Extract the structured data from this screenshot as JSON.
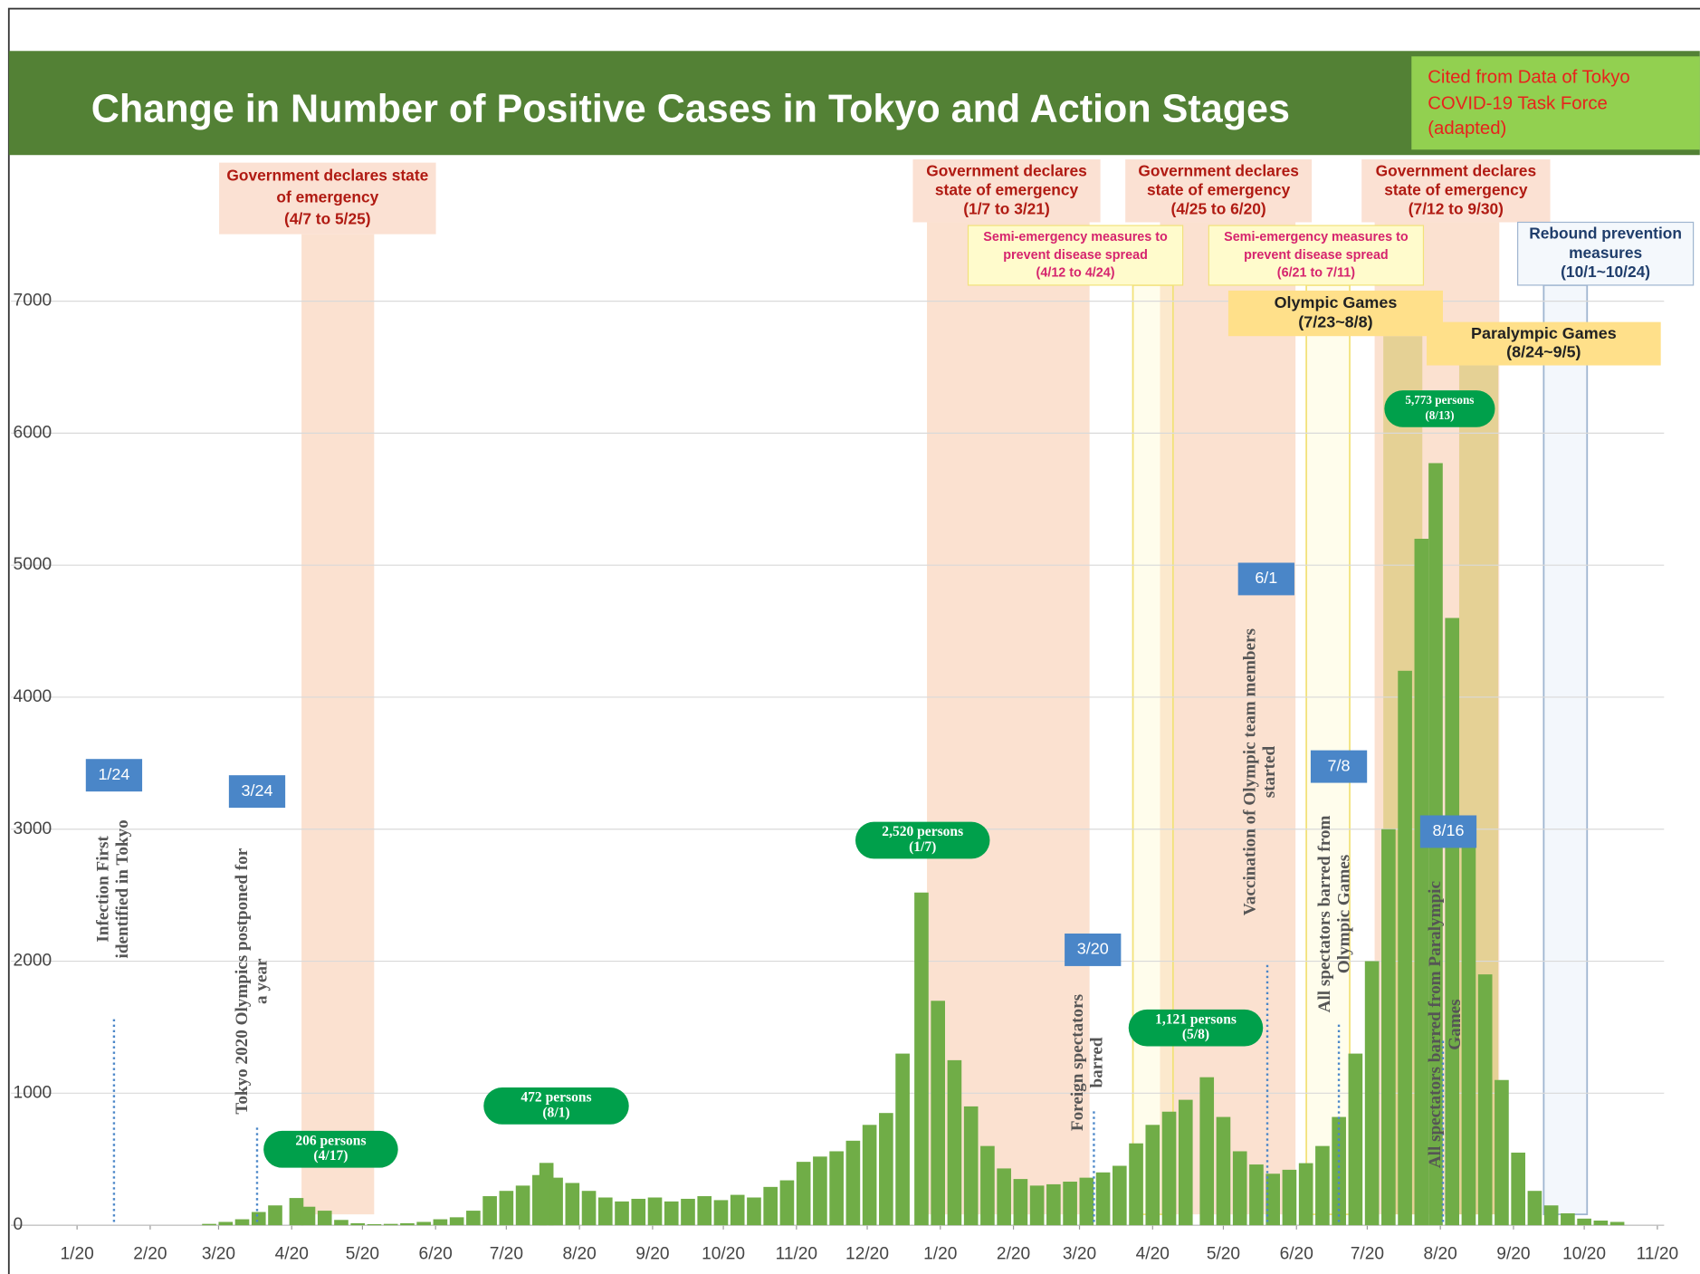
{
  "title": "Change in Number of Positive Cases in Tokyo and Action Stages",
  "source": [
    "Cited from Data of Tokyo",
    "COVID-19 Task Force",
    "(adapted)"
  ],
  "chart_data": {
    "type": "bar",
    "color": "#70ad47",
    "grid": true,
    "xlim": [
      -14,
      702
    ],
    "ylim": [
      0,
      8000
    ],
    "yticks": [
      0,
      1000,
      2000,
      3000,
      4000,
      5000,
      6000,
      7000
    ],
    "xticks": [
      {
        "value": 14,
        "label": "1/20"
      },
      {
        "value": 45,
        "label": "2/20"
      },
      {
        "value": 74,
        "label": "3/20"
      },
      {
        "value": 105,
        "label": "4/20"
      },
      {
        "value": 135,
        "label": "5/20"
      },
      {
        "value": 166,
        "label": "6/20"
      },
      {
        "value": 196,
        "label": "7/20"
      },
      {
        "value": 227,
        "label": "8/20"
      },
      {
        "value": 258,
        "label": "9/20"
      },
      {
        "value": 288,
        "label": "10/20"
      },
      {
        "value": 319,
        "label": "11/20"
      },
      {
        "value": 349,
        "label": "12/20"
      },
      {
        "value": 380,
        "label": "1/20"
      },
      {
        "value": 411,
        "label": "2/20"
      },
      {
        "value": 439,
        "label": "3/20"
      },
      {
        "value": 470,
        "label": "4/20"
      },
      {
        "value": 500,
        "label": "5/20"
      },
      {
        "value": 531,
        "label": "6/20"
      },
      {
        "value": 561,
        "label": "7/20"
      },
      {
        "value": 592,
        "label": "8/20"
      },
      {
        "value": 623,
        "label": "9/20"
      },
      {
        "value": 653,
        "label": "10/20"
      },
      {
        "value": 684,
        "label": "11/20"
      }
    ],
    "x": [
      70,
      77,
      84,
      91,
      98,
      107,
      112,
      119,
      126,
      133,
      140,
      147,
      154,
      161,
      168,
      175,
      182,
      189,
      196,
      203,
      210,
      213,
      217,
      224,
      231,
      238,
      245,
      252,
      259,
      266,
      273,
      280,
      287,
      294,
      301,
      308,
      315,
      322,
      329,
      336,
      343,
      350,
      357,
      364,
      372,
      379,
      386,
      393,
      400,
      407,
      414,
      421,
      428,
      435,
      442,
      449,
      456,
      463,
      470,
      477,
      484,
      493,
      500,
      507,
      514,
      521,
      528,
      535,
      542,
      549,
      556,
      563,
      570,
      577,
      584,
      590,
      597,
      604,
      611,
      618,
      625,
      632,
      639,
      646,
      653,
      660,
      667
    ],
    "values": [
      10,
      25,
      45,
      100,
      150,
      206,
      140,
      110,
      40,
      15,
      8,
      10,
      15,
      25,
      45,
      60,
      110,
      220,
      260,
      300,
      380,
      472,
      360,
      320,
      260,
      210,
      180,
      200,
      210,
      180,
      200,
      220,
      190,
      230,
      210,
      290,
      340,
      480,
      520,
      560,
      640,
      760,
      850,
      1300,
      2520,
      1700,
      1250,
      900,
      600,
      430,
      350,
      300,
      310,
      330,
      360,
      400,
      450,
      620,
      760,
      860,
      950,
      1121,
      820,
      560,
      460,
      390,
      420,
      470,
      600,
      820,
      1300,
      2000,
      3000,
      4200,
      5200,
      5773,
      4600,
      3000,
      1900,
      1100,
      550,
      260,
      150,
      90,
      50,
      35,
      25
    ],
    "periods": [
      {
        "kind": "emergency",
        "text": [
          "Government declares state",
          "of emergency",
          "(4/7 to 5/25)"
        ]
      },
      {
        "kind": "emergency",
        "text": [
          "Government declares",
          "state of emergency",
          "(1/7 to 3/21)"
        ]
      },
      {
        "kind": "emergency",
        "text": [
          "Government declares",
          "state of emergency",
          "(4/25 to 6/20)"
        ]
      },
      {
        "kind": "emergency",
        "text": [
          "Government declares",
          "state of emergency",
          "(7/12 to 9/30)"
        ]
      },
      {
        "kind": "semi",
        "text": [
          "Semi-emergency measures to",
          "prevent disease spread",
          "(4/12 to 4/24)"
        ]
      },
      {
        "kind": "semi",
        "text": [
          "Semi-emergency measures to",
          "prevent disease spread",
          "(6/21 to 7/11)"
        ]
      },
      {
        "kind": "games",
        "text": [
          "Olympic Games",
          "(7/23~8/8)"
        ]
      },
      {
        "kind": "games",
        "text": [
          "Paralympic Games",
          "(8/24~9/5)"
        ]
      },
      {
        "kind": "rebound",
        "text": [
          "Rebound prevention",
          "measures",
          "(10/1~10/24)"
        ]
      }
    ],
    "peaks": [
      {
        "text": [
          "206 persons",
          "(4/17)"
        ]
      },
      {
        "text": [
          "472 persons",
          "(8/1)"
        ]
      },
      {
        "text": [
          "2,520 persons",
          "(1/7)"
        ]
      },
      {
        "text": [
          "1,121 persons",
          "(5/8)"
        ]
      },
      {
        "text": [
          "5,773 persons",
          "(8/13)"
        ]
      }
    ],
    "events": [
      {
        "date": "1/24",
        "text": [
          "Infection First",
          "identified in Tokyo"
        ]
      },
      {
        "date": "3/24",
        "text": [
          "Tokyo 2020 Olympics postponed for",
          "a year"
        ]
      },
      {
        "date": "3/20",
        "text": [
          "Foreign spectators",
          "barred"
        ]
      },
      {
        "date": "6/1",
        "text": [
          "Vaccination of Olympic team members",
          "started"
        ]
      },
      {
        "date": "7/8",
        "text": [
          "All spectators barred from",
          "Olympic Games"
        ]
      },
      {
        "date": "8/16",
        "text": [
          "All spectators barred from Paralympic",
          "Games"
        ]
      }
    ]
  }
}
